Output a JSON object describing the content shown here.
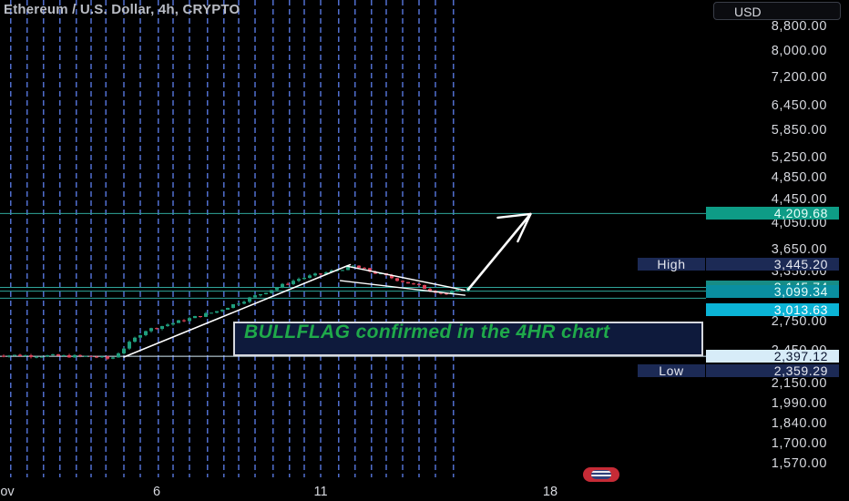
{
  "header": {
    "title": "Ethereum / U.S. Dollar, 4h, CRYPTO",
    "currency": "USD"
  },
  "chart_data": {
    "type": "candlestick",
    "symbol": "Ethereum / U.S. Dollar",
    "interval": "4h",
    "exchange_label": "CRYPTO",
    "y_scale": "log",
    "ylim": [
      1480,
      8900
    ],
    "y_ticks": [
      8800,
      8000,
      7200,
      6450,
      5850,
      5250,
      4850,
      4450,
      4050,
      3650,
      3350,
      2750,
      2450,
      2150,
      1990,
      1840,
      1700,
      1570
    ],
    "y_tick_labels": [
      "8,800.00",
      "8,000.00",
      "7,200.00",
      "6,450.00",
      "5,850.00",
      "5,250.00",
      "4,850.00",
      "4,450.00",
      "4,050.00",
      "3,650.00",
      "3,350.00",
      "2,750.00",
      "2,450.00",
      "2,150.00",
      "1,990.00",
      "1,840.00",
      "1,700.00",
      "1,570.00"
    ],
    "x_tick_labels": [
      {
        "label": "ov",
        "day": 1
      },
      {
        "label": "6",
        "day": 6
      },
      {
        "label": "11",
        "day": 11
      },
      {
        "label": "18",
        "day": 18
      }
    ],
    "horizontal_levels": [
      {
        "value": 4209.68,
        "label": "4,209.68",
        "color": "#2fa69a"
      },
      {
        "value": 3145.74,
        "label": "3,145.74",
        "color": "#2fa69a"
      },
      {
        "value": 3099.34,
        "label": "3,099.34",
        "color": "#2fa69a"
      },
      {
        "value": 3013.63,
        "label": "3,013.63",
        "color": "#2fa69a"
      },
      {
        "value": 2397.12,
        "label": "2,397.12",
        "color": "#d7ecf8"
      }
    ],
    "high": {
      "label": "High",
      "value": "3,445.20"
    },
    "low": {
      "label": "Low",
      "value": "2,359.29"
    },
    "annotation": "BULLFLAG confirmed in the 4HR chart",
    "close_segments": [
      {
        "from_day": 1.0,
        "to_day": 4.1,
        "from": 2410,
        "to": 2395
      },
      {
        "from_day": 4.1,
        "to_day": 4.6,
        "from": 2395,
        "to": 2370
      },
      {
        "from_day": 4.6,
        "to_day": 5.6,
        "from": 2370,
        "to": 2650
      },
      {
        "from_day": 5.6,
        "to_day": 7.8,
        "from": 2650,
        "to": 2860
      },
      {
        "from_day": 7.8,
        "to_day": 10.3,
        "from": 2860,
        "to": 3250
      },
      {
        "from_day": 10.3,
        "to_day": 12.0,
        "from": 3250,
        "to": 3420
      },
      {
        "from_day": 12.0,
        "to_day": 14.8,
        "from": 3420,
        "to": 3060
      },
      {
        "from_day": 14.8,
        "to_day": 15.55,
        "from": 3060,
        "to": 3145
      }
    ],
    "drawings": {
      "flagpole": [
        {
          "day": 5.0,
          "price": 2390
        },
        {
          "day": 11.9,
          "price": 3440
        }
      ],
      "flag_upper": [
        {
          "day": 11.8,
          "price": 3420
        },
        {
          "day": 15.4,
          "price": 3110
        }
      ],
      "flag_lower": [
        {
          "day": 11.6,
          "price": 3230
        },
        {
          "day": 15.4,
          "price": 3050
        }
      ],
      "projection_arrow": [
        {
          "day": 15.5,
          "price": 3120
        },
        {
          "day": 17.4,
          "price": 4200
        }
      ]
    },
    "grid_day_lines": [
      1.05,
      1.55,
      2.05,
      2.55,
      3.05,
      3.55,
      4.0,
      4.45,
      5.0,
      5.5,
      6.05,
      6.5,
      7.0,
      7.55,
      8.05,
      8.5,
      9.0,
      9.55,
      10.05,
      10.5,
      11.0,
      11.55,
      12.05,
      12.55,
      13.0,
      13.5,
      14.0,
      14.5,
      15.05
    ]
  },
  "colors": {
    "up": "#1f9e7d",
    "down": "#e0445a",
    "grid_dash": "#5e80f0",
    "level_line": "#2fa69a",
    "drawing": "#ffffff"
  },
  "icons": {
    "flag": "us-flag-icon"
  }
}
